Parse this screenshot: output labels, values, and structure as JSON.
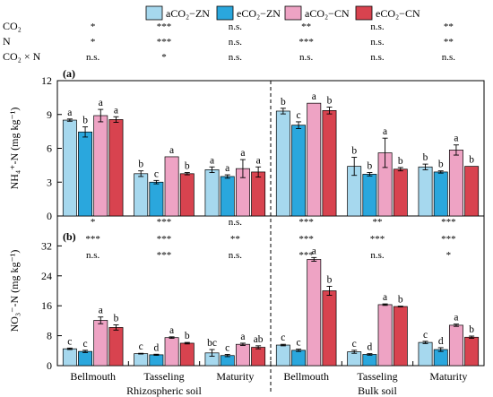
{
  "chart_data": {
    "type": "bar",
    "legend": {
      "placement": "top-center",
      "entries": [
        {
          "name": "aCO₂−ZN",
          "color": "#a6d8ee"
        },
        {
          "name": "eCO₂−ZN",
          "color": "#2aa7dd"
        },
        {
          "name": "aCO₂−CN",
          "color": "#eea3c4"
        },
        {
          "name": "eCO₂−CN",
          "color": "#d8434f"
        }
      ]
    },
    "categories": [
      "Bellmouth",
      "Tasseling",
      "Maturity",
      "Bellmouth",
      "Tasseling",
      "Maturity"
    ],
    "groups": [
      "Rhizospheric soil",
      "Bulk soil"
    ],
    "panels": [
      {
        "label": "(a)",
        "ylabel": "NH₄⁺-N (mg kg⁻¹)",
        "ylim": [
          0,
          12
        ],
        "yticks": [
          0,
          3,
          6,
          9,
          12
        ],
        "significance": [
          {
            "factor": "CO₂",
            "marks": [
              "*",
              "***",
              "n.s.",
              "**",
              "n.s.",
              "**"
            ]
          },
          {
            "factor": "N",
            "marks": [
              "*",
              "***",
              "n.s.",
              "***",
              "n.s.",
              "**"
            ]
          },
          {
            "factor": "CO₂ × N",
            "marks": [
              "n.s.",
              "*",
              "n.s.",
              "n.s.",
              "n.s.",
              "n.s."
            ]
          }
        ],
        "series": [
          {
            "values": [
              8.5,
              3.75,
              4.1,
              9.3,
              4.4,
              4.35
            ],
            "errors": [
              0.1,
              0.25,
              0.25,
              0.25,
              0.8,
              0.25
            ],
            "letters": [
              "a",
              "b",
              "a",
              "b",
              "b",
              "b"
            ]
          },
          {
            "values": [
              7.45,
              3.0,
              3.5,
              8.05,
              3.7,
              3.9
            ],
            "errors": [
              0.45,
              0.15,
              0.15,
              0.3,
              0.15,
              0.1
            ],
            "letters": [
              "b",
              "c",
              "a",
              "c",
              "b",
              "b"
            ]
          },
          {
            "values": [
              8.9,
              5.25,
              4.2,
              10.0,
              5.6,
              5.85
            ],
            "errors": [
              0.55,
              0.0,
              0.8,
              0.0,
              1.3,
              0.45
            ],
            "letters": [
              "a",
              "a",
              "a",
              "a",
              "a",
              "a"
            ]
          },
          {
            "values": [
              8.55,
              3.75,
              3.9,
              9.35,
              4.15,
              4.4
            ],
            "errors": [
              0.25,
              0.1,
              0.45,
              0.3,
              0.15,
              0.0
            ],
            "letters": [
              "a",
              "b",
              "a",
              "b",
              "b",
              "b"
            ]
          }
        ]
      },
      {
        "label": "(b)",
        "ylabel": "NO₃⁻-N (mg kg⁻¹)",
        "ylim": [
          0,
          40
        ],
        "yticks": [
          0,
          8,
          16,
          24,
          32
        ],
        "significance": [
          {
            "factor": "CO₂",
            "marks": [
              "*",
              "***",
              "n.s.",
              "***",
              "**",
              "***"
            ]
          },
          {
            "factor": "N",
            "marks": [
              "***",
              "***",
              "**",
              "***",
              "***",
              "***"
            ]
          },
          {
            "factor": "CO₂ × N",
            "marks": [
              "n.s.",
              "***",
              "n.s.",
              "***",
              "n.s.",
              "*"
            ]
          }
        ],
        "series": [
          {
            "values": [
              4.5,
              3.2,
              3.4,
              5.5,
              3.7,
              6.2
            ],
            "errors": [
              0.2,
              0.1,
              0.9,
              0.2,
              0.4,
              0.3
            ],
            "letters": [
              "c",
              "c",
              "bc",
              "c",
              "c",
              "c"
            ]
          },
          {
            "values": [
              3.8,
              2.9,
              2.7,
              4.1,
              3.0,
              4.3
            ],
            "errors": [
              0.3,
              0.15,
              0.3,
              0.3,
              0.2,
              0.5
            ],
            "letters": [
              "c",
              "d",
              "c",
              "c",
              "d",
              "d"
            ]
          },
          {
            "values": [
              12.1,
              7.5,
              5.7,
              28.4,
              16.3,
              10.8
            ],
            "errors": [
              0.9,
              0.2,
              0.3,
              0.5,
              0.2,
              0.3
            ],
            "letters": [
              "a",
              "a",
              "a",
              "a",
              "a",
              "a"
            ]
          },
          {
            "values": [
              10.2,
              6.0,
              4.9,
              20.0,
              15.8,
              7.6
            ],
            "errors": [
              0.7,
              0.2,
              0.4,
              1.2,
              0.1,
              0.3
            ],
            "letters": [
              "b",
              "b",
              "ab",
              "b",
              "b",
              "b"
            ]
          }
        ]
      }
    ]
  }
}
